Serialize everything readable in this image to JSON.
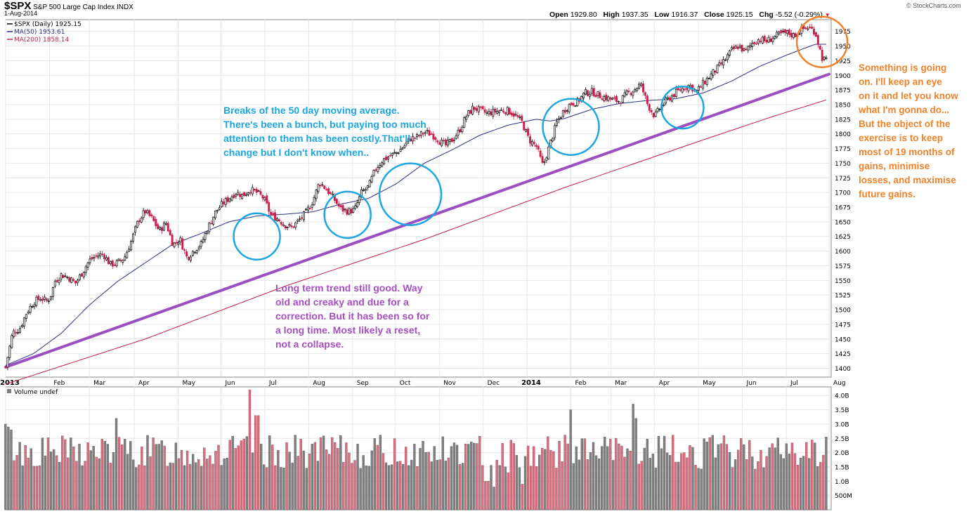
{
  "header": {
    "symbol": "$SPX",
    "index_name": "S&P 500 Large Cap Index",
    "exchange": "INDX",
    "date": "1-Aug-2014",
    "watermark": "© StockCharts.com",
    "open_label": "Open",
    "open": "1929.80",
    "high_label": "High",
    "high": "1937.35",
    "low_label": "Low",
    "low": "1916.37",
    "close_label": "Close",
    "close": "1925.15",
    "chg_label": "Chg",
    "chg": "-5.52 (-0.29%)"
  },
  "legend": {
    "price": "$SPX (Daily) 1925.15",
    "ma50": "MA(50) 1953.61",
    "ma200": "MA(200) 1858.14",
    "volume": "Volume undef"
  },
  "annotations": {
    "blue": [
      "Breaks of the 50 day moving average.",
      "There's been a bunch, but paying too much",
      "attention to them has been costly.That'll",
      "change but I don't know when.."
    ],
    "purple": [
      "Long term trend still good. Way",
      "old and creaky and due for a",
      "correction. But it has been so for",
      "a long time. Most likely a reset,",
      "not a collapse."
    ],
    "orange": [
      "Something is going",
      "on.  I'll keep an eye",
      "on it and let you know",
      "what I'm gonna do...",
      "But the object of the",
      "exercise is to keep",
      "most of 19 months of",
      "gains, minimise",
      "losses, and maximise",
      "future gains."
    ]
  },
  "colors": {
    "up": "#000000",
    "down": "#cc1f4a",
    "ma50": "#2b2f7e",
    "ma200": "#c01f44",
    "trendline": "#9b4fc0",
    "circle_blue": "#1ea6e0",
    "circle_orange": "#f0822a",
    "grid": "#e6e6e6",
    "vol_up": "#808080",
    "vol_down": "#e06c7f"
  },
  "chart_data": {
    "type": "candlestick",
    "x_ticks": [
      "2013",
      "Feb",
      "Mar",
      "Apr",
      "May",
      "Jun",
      "Jul",
      "Aug",
      "Sep",
      "Oct",
      "Nov",
      "Dec",
      "2014",
      "Feb",
      "Mar",
      "Apr",
      "May",
      "Jun",
      "Jul",
      "Aug"
    ],
    "y_ticks": [
      1400,
      1425,
      1450,
      1475,
      1500,
      1525,
      1550,
      1575,
      1600,
      1625,
      1650,
      1675,
      1700,
      1725,
      1750,
      1775,
      1800,
      1825,
      1850,
      1875,
      1900,
      1925,
      1950,
      1975
    ],
    "ylim": [
      1385,
      1995
    ],
    "price_path": [
      [
        0,
        1402
      ],
      [
        0.5,
        1461
      ],
      [
        1,
        1467
      ],
      [
        1.5,
        1495
      ],
      [
        2,
        1513
      ],
      [
        2.5,
        1520
      ],
      [
        3,
        1514
      ],
      [
        3.3,
        1528
      ],
      [
        3.5,
        1548
      ],
      [
        4,
        1560
      ],
      [
        4.5,
        1555
      ],
      [
        5,
        1545
      ],
      [
        5.5,
        1564
      ],
      [
        6,
        1584
      ],
      [
        6.5,
        1592
      ],
      [
        7,
        1595
      ],
      [
        7.5,
        1577
      ],
      [
        8,
        1580
      ],
      [
        8.5,
        1588
      ],
      [
        9,
        1617
      ],
      [
        9.5,
        1652
      ],
      [
        10,
        1668
      ],
      [
        10.5,
        1655
      ],
      [
        11,
        1635
      ],
      [
        11.5,
        1648
      ],
      [
        12,
        1611
      ],
      [
        12.5,
        1620
      ],
      [
        13,
        1588
      ],
      [
        13.5,
        1602
      ],
      [
        14,
        1612
      ],
      [
        14.5,
        1640
      ],
      [
        15,
        1665
      ],
      [
        15.5,
        1680
      ],
      [
        16,
        1690
      ],
      [
        16.5,
        1700
      ],
      [
        17,
        1695
      ],
      [
        17.5,
        1705
      ],
      [
        18,
        1700
      ],
      [
        18.5,
        1690
      ],
      [
        19,
        1662
      ],
      [
        19.5,
        1655
      ],
      [
        20,
        1645
      ],
      [
        20.5,
        1640
      ],
      [
        21,
        1652
      ],
      [
        21.5,
        1665
      ],
      [
        22,
        1685
      ],
      [
        22.5,
        1718
      ],
      [
        23,
        1705
      ],
      [
        23.5,
        1690
      ],
      [
        24,
        1672
      ],
      [
        24.5,
        1668
      ],
      [
        25,
        1670
      ],
      [
        25.5,
        1700
      ],
      [
        26,
        1710
      ],
      [
        26.5,
        1740
      ],
      [
        27,
        1755
      ],
      [
        27.5,
        1762
      ],
      [
        28,
        1768
      ],
      [
        28.5,
        1778
      ],
      [
        29,
        1792
      ],
      [
        29.5,
        1795
      ],
      [
        30,
        1803
      ],
      [
        30.5,
        1800
      ],
      [
        31,
        1790
      ],
      [
        31.5,
        1780
      ],
      [
        32,
        1790
      ],
      [
        32.5,
        1805
      ],
      [
        33,
        1830
      ],
      [
        33.5,
        1845
      ],
      [
        34,
        1840
      ],
      [
        34.5,
        1835
      ],
      [
        35,
        1838
      ],
      [
        35.5,
        1840
      ],
      [
        36,
        1840
      ],
      [
        36.5,
        1832
      ],
      [
        37,
        1820
      ],
      [
        37.5,
        1790
      ],
      [
        38,
        1780
      ],
      [
        38.5,
        1745
      ],
      [
        39,
        1782
      ],
      [
        39.5,
        1820
      ],
      [
        40,
        1840
      ],
      [
        40.5,
        1852
      ],
      [
        41,
        1855
      ],
      [
        41.5,
        1870
      ],
      [
        42,
        1872
      ],
      [
        42.5,
        1866
      ],
      [
        43,
        1862
      ],
      [
        43.5,
        1858
      ],
      [
        44,
        1856
      ],
      [
        44.5,
        1868
      ],
      [
        45,
        1875
      ],
      [
        45.5,
        1885
      ],
      [
        46,
        1850
      ],
      [
        46.5,
        1830
      ],
      [
        47,
        1848
      ],
      [
        47.5,
        1860
      ],
      [
        48,
        1870
      ],
      [
        48.5,
        1878
      ],
      [
        49,
        1883
      ],
      [
        49.5,
        1872
      ],
      [
        50,
        1887
      ],
      [
        50.5,
        1900
      ],
      [
        51,
        1912
      ],
      [
        51.5,
        1925
      ],
      [
        52,
        1942
      ],
      [
        52.5,
        1950
      ],
      [
        53,
        1940
      ],
      [
        53.5,
        1955
      ],
      [
        54,
        1962
      ],
      [
        54.5,
        1958
      ],
      [
        55,
        1965
      ],
      [
        55.5,
        1970
      ],
      [
        56,
        1972
      ],
      [
        56.5,
        1968
      ],
      [
        57,
        1978
      ],
      [
        57.5,
        1982
      ],
      [
        58,
        1975
      ],
      [
        58.5,
        1930
      ],
      [
        58.8,
        1925
      ]
    ],
    "ma50_path": [
      [
        0,
        1405
      ],
      [
        2,
        1425
      ],
      [
        4,
        1460
      ],
      [
        6,
        1508
      ],
      [
        8,
        1548
      ],
      [
        10,
        1580
      ],
      [
        12,
        1612
      ],
      [
        14,
        1630
      ],
      [
        16,
        1650
      ],
      [
        18,
        1660
      ],
      [
        20,
        1663
      ],
      [
        22,
        1667
      ],
      [
        24,
        1680
      ],
      [
        26,
        1690
      ],
      [
        28,
        1715
      ],
      [
        30,
        1750
      ],
      [
        32,
        1773
      ],
      [
        34,
        1798
      ],
      [
        36,
        1815
      ],
      [
        38,
        1825
      ],
      [
        39,
        1822
      ],
      [
        40,
        1826
      ],
      [
        42,
        1842
      ],
      [
        44,
        1852
      ],
      [
        46,
        1857
      ],
      [
        48,
        1860
      ],
      [
        50,
        1870
      ],
      [
        52,
        1890
      ],
      [
        54,
        1915
      ],
      [
        56,
        1935
      ],
      [
        58,
        1953
      ],
      [
        58.8,
        1953
      ]
    ],
    "ma200_path": [
      [
        0,
        1373
      ],
      [
        10,
        1450
      ],
      [
        20,
        1540
      ],
      [
        30,
        1620
      ],
      [
        40,
        1708
      ],
      [
        50,
        1790
      ],
      [
        55,
        1830
      ],
      [
        58.8,
        1858
      ]
    ],
    "trend_line": [
      [
        0,
        1402
      ],
      [
        59,
        1902
      ]
    ],
    "volume_ticks": [
      "4.0B",
      "3.5B",
      "3.0B",
      "2.5B",
      "2.0B",
      "1.5B",
      "1.0B",
      "500M"
    ],
    "volume_ylim": [
      0,
      4.3
    ],
    "volume_spikes": [
      [
        17.5,
        4.2
      ],
      [
        45,
        3.7
      ],
      [
        40.5,
        3.5
      ],
      [
        18,
        3.3
      ],
      [
        45.2,
        3.2
      ],
      [
        8,
        3.2
      ]
    ],
    "volume_lows": [
      [
        37,
        0.9
      ],
      [
        36,
        1.3
      ],
      [
        35,
        0.8
      ],
      [
        34.5,
        1.0
      ]
    ],
    "circles": [
      {
        "x": 18,
        "y": 1625,
        "color": "blue"
      },
      {
        "x": 24.5,
        "y": 1662,
        "color": "blue"
      },
      {
        "x": 29,
        "y": 1697,
        "color": "blue"
      },
      {
        "x": 40.5,
        "y": 1812,
        "color": "blue"
      },
      {
        "x": 48.5,
        "y": 1845,
        "color": "blue"
      },
      {
        "x": 58.5,
        "y": 1957,
        "color": "orange"
      }
    ]
  }
}
